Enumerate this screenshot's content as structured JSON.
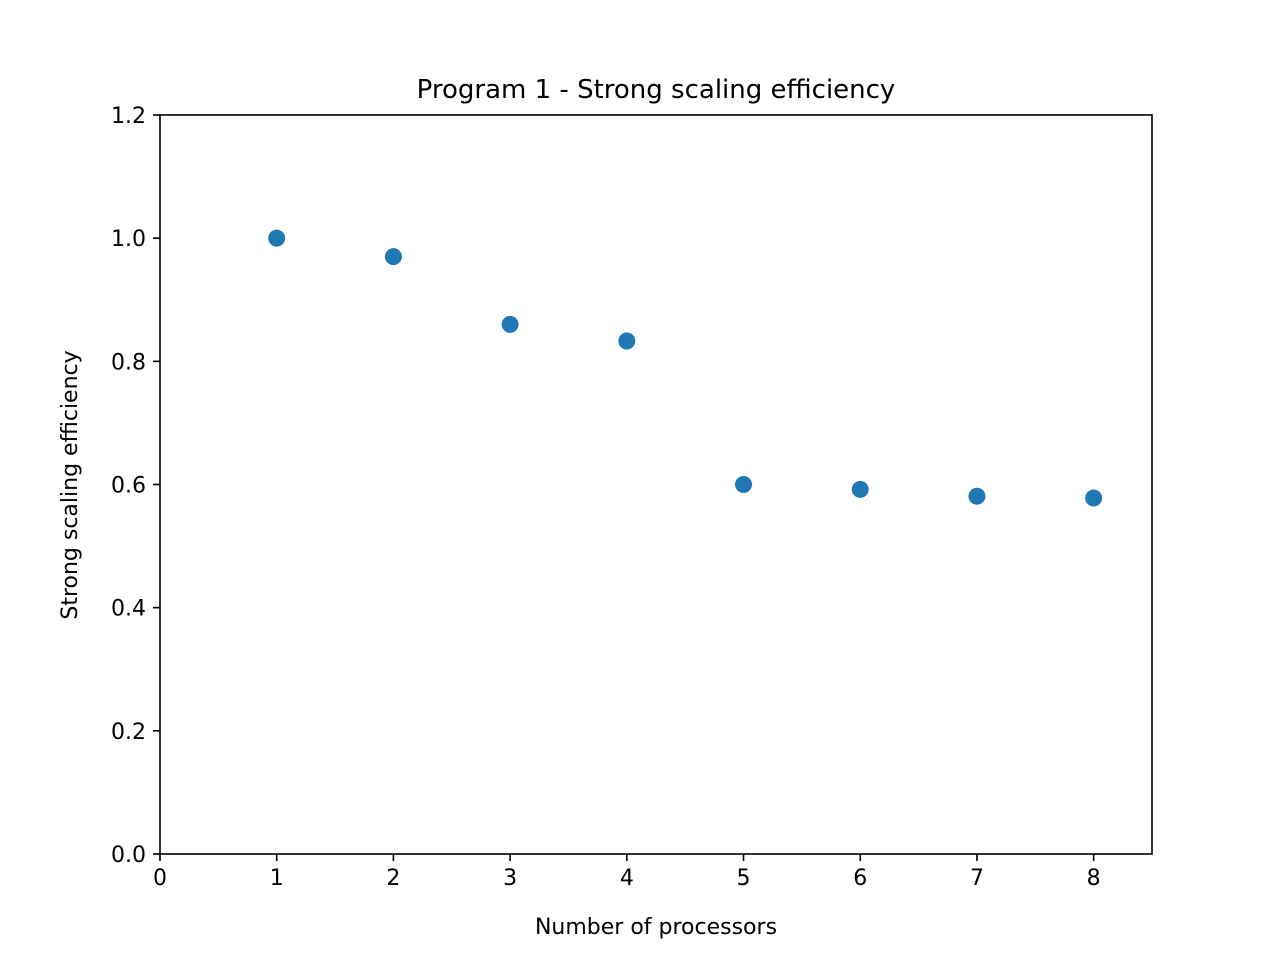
{
  "chart_data": {
    "type": "scatter",
    "title": "Program 1 - Strong scaling efficiency",
    "xlabel": "Number of processors",
    "ylabel": "Strong scaling efficiency",
    "xlim": [
      0,
      8.5
    ],
    "ylim": [
      0,
      1.2
    ],
    "xticks": [
      0,
      1,
      2,
      3,
      4,
      5,
      6,
      7,
      8
    ],
    "xtick_labels": [
      "0",
      "1",
      "2",
      "3",
      "4",
      "5",
      "6",
      "7",
      "8"
    ],
    "yticks": [
      0.0,
      0.2,
      0.4,
      0.6,
      0.8,
      1.0,
      1.2
    ],
    "ytick_labels": [
      "0.0",
      "0.2",
      "0.4",
      "0.6",
      "0.8",
      "1.0",
      "1.2"
    ],
    "grid": false,
    "series": [
      {
        "color": "#1f77b4",
        "x": [
          1,
          2,
          3,
          4,
          5,
          6,
          7,
          8
        ],
        "y": [
          1.0,
          0.97,
          0.86,
          0.833,
          0.6,
          0.592,
          0.581,
          0.578
        ]
      }
    ]
  }
}
